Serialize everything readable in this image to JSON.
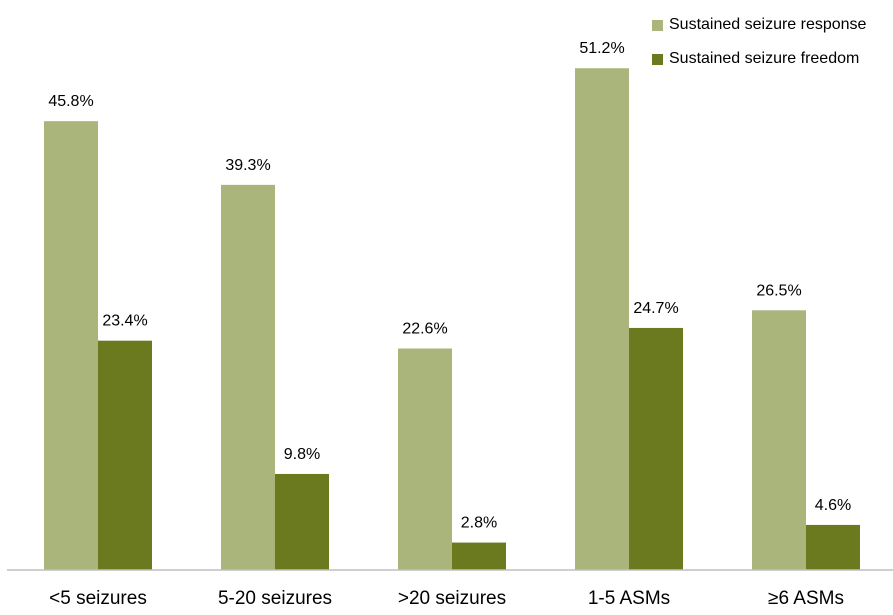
{
  "chart_data": {
    "type": "bar",
    "categories": [
      "<5 seizures",
      "5-20 seizures",
      ">20 seizures",
      "1-5 ASMs",
      "≥6 ASMs"
    ],
    "series": [
      {
        "name": "Sustained seizure response",
        "color": "#aab57b",
        "values": [
          45.8,
          39.3,
          22.6,
          51.2,
          26.5
        ],
        "labels": [
          "45.8%",
          "39.3%",
          "22.6%",
          "51.2%",
          "26.5%"
        ]
      },
      {
        "name": "Sustained seizure freedom",
        "color": "#6b7a1f",
        "values": [
          23.4,
          9.8,
          2.8,
          24.7,
          4.6
        ],
        "labels": [
          "23.4%",
          "9.8%",
          "2.8%",
          "24.7%",
          "4.6%"
        ]
      }
    ],
    "ylim": [
      0,
      55
    ],
    "grid": false,
    "legend_position": "top-right"
  }
}
